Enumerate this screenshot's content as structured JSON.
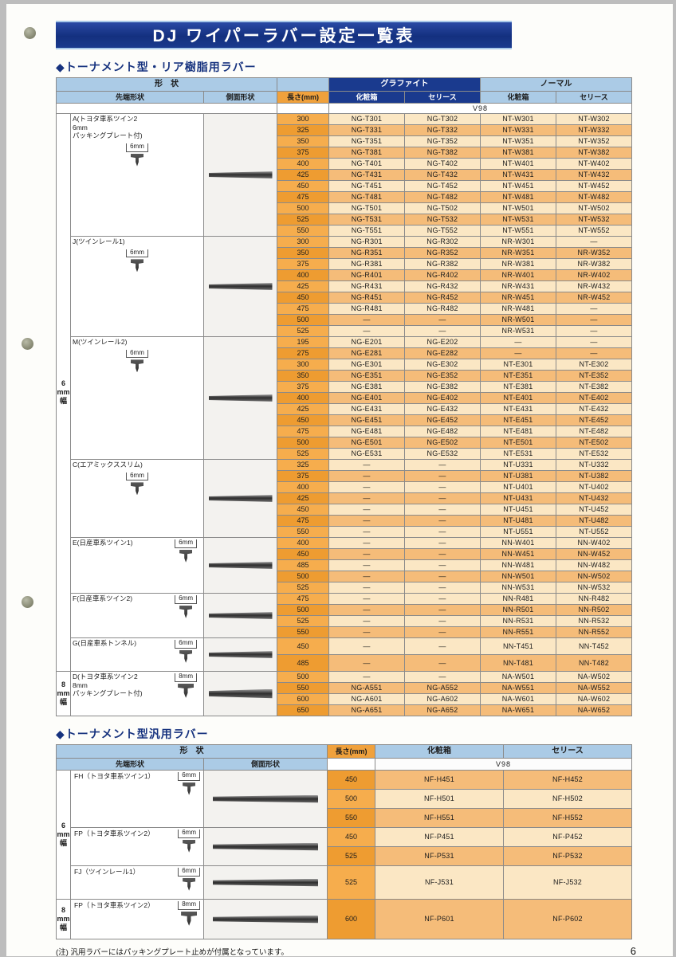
{
  "page": {
    "title": "DJ ワイパーラバー設定一覧表",
    "page_number": "6",
    "footnote": "(注) 汎用ラバーにはパッキングプレート止めが付属となっています。"
  },
  "colors": {
    "banner_bg": "#1A3A8E",
    "header_blue": "#ABCBE6",
    "header_navy": "#1A3A8E",
    "length_orange": "#F0A13C",
    "row_light": "#FBE7C4",
    "row_orange": "#F5BC79"
  },
  "table1": {
    "section_title": "◆トーナメント型・リア樹脂用ラバー",
    "headers": {
      "shape": "形　状",
      "tip": "先端形状",
      "side": "側面形状",
      "length": "長さ(mm)",
      "graphite": "グラファイト",
      "normal": "ノーマル",
      "box_graphite": "化粧箱",
      "series_graphite": "セリース",
      "box_normal": "化粧箱",
      "series_normal": "セリース",
      "model": "V98"
    },
    "width_labels": {
      "6mm": [
        "6",
        "mm",
        "幅"
      ],
      "8mm": [
        "8",
        "mm",
        "幅"
      ]
    },
    "groups": [
      {
        "id": "A",
        "label_lines": [
          "A(トヨタ車系ツイン2",
          "6mm",
          "パッキングプレート付)"
        ],
        "tip_size": "6mm",
        "width": "6mm",
        "rows": [
          {
            "len": "300",
            "cells": [
              "NG-T301",
              "NG-T302",
              "NT-W301",
              "NT-W302"
            ]
          },
          {
            "len": "325",
            "cells": [
              "NG-T331",
              "NG-T332",
              "NT-W331",
              "NT-W332"
            ]
          },
          {
            "len": "350",
            "cells": [
              "NG-T351",
              "NG-T352",
              "NT-W351",
              "NT-W352"
            ]
          },
          {
            "len": "375",
            "cells": [
              "NG-T381",
              "NG-T382",
              "NT-W381",
              "NT-W382"
            ]
          },
          {
            "len": "400",
            "cells": [
              "NG-T401",
              "NG-T402",
              "NT-W401",
              "NT-W402"
            ]
          },
          {
            "len": "425",
            "cells": [
              "NG-T431",
              "NG-T432",
              "NT-W431",
              "NT-W432"
            ]
          },
          {
            "len": "450",
            "cells": [
              "NG-T451",
              "NG-T452",
              "NT-W451",
              "NT-W452"
            ]
          },
          {
            "len": "475",
            "cells": [
              "NG-T481",
              "NG-T482",
              "NT-W481",
              "NT-W482"
            ]
          },
          {
            "len": "500",
            "cells": [
              "NG-T501",
              "NG-T502",
              "NT-W501",
              "NT-W502"
            ]
          },
          {
            "len": "525",
            "cells": [
              "NG-T531",
              "NG-T532",
              "NT-W531",
              "NT-W532"
            ]
          },
          {
            "len": "550",
            "cells": [
              "NG-T551",
              "NG-T552",
              "NT-W551",
              "NT-W552"
            ]
          }
        ]
      },
      {
        "id": "J",
        "label_lines": [
          "J(ツインレール1)"
        ],
        "tip_size": "6mm",
        "width": "6mm",
        "rows": [
          {
            "len": "300",
            "cells": [
              "NG-R301",
              "NG-R302",
              "NR-W301",
              "—"
            ]
          },
          {
            "len": "350",
            "cells": [
              "NG-R351",
              "NG-R352",
              "NR-W351",
              "NR-W352"
            ]
          },
          {
            "len": "375",
            "cells": [
              "NG-R381",
              "NG-R382",
              "NR-W381",
              "NR-W382"
            ]
          },
          {
            "len": "400",
            "cells": [
              "NG-R401",
              "NG-R402",
              "NR-W401",
              "NR-W402"
            ]
          },
          {
            "len": "425",
            "cells": [
              "NG-R431",
              "NG-R432",
              "NR-W431",
              "NR-W432"
            ]
          },
          {
            "len": "450",
            "cells": [
              "NG-R451",
              "NG-R452",
              "NR-W451",
              "NR-W452"
            ]
          },
          {
            "len": "475",
            "cells": [
              "NG-R481",
              "NG-R482",
              "NR-W481",
              "—"
            ]
          },
          {
            "len": "500",
            "cells": [
              "—",
              "—",
              "NR-W501",
              "—"
            ]
          },
          {
            "len": "525",
            "cells": [
              "—",
              "—",
              "NR-W531",
              "—"
            ]
          }
        ]
      },
      {
        "id": "M",
        "label_lines": [
          "M(ツインレール2)"
        ],
        "tip_size": "6mm",
        "width": "6mm",
        "rows": [
          {
            "len": "195",
            "cells": [
              "NG-E201",
              "NG-E202",
              "—",
              "—"
            ]
          },
          {
            "len": "275",
            "cells": [
              "NG-E281",
              "NG-E282",
              "—",
              "—"
            ]
          },
          {
            "len": "300",
            "cells": [
              "NG-E301",
              "NG-E302",
              "NT-E301",
              "NT-E302"
            ]
          },
          {
            "len": "350",
            "cells": [
              "NG-E351",
              "NG-E352",
              "NT-E351",
              "NT-E352"
            ]
          },
          {
            "len": "375",
            "cells": [
              "NG-E381",
              "NG-E382",
              "NT-E381",
              "NT-E382"
            ]
          },
          {
            "len": "400",
            "cells": [
              "NG-E401",
              "NG-E402",
              "NT-E401",
              "NT-E402"
            ]
          },
          {
            "len": "425",
            "cells": [
              "NG-E431",
              "NG-E432",
              "NT-E431",
              "NT-E432"
            ]
          },
          {
            "len": "450",
            "cells": [
              "NG-E451",
              "NG-E452",
              "NT-E451",
              "NT-E452"
            ]
          },
          {
            "len": "475",
            "cells": [
              "NG-E481",
              "NG-E482",
              "NT-E481",
              "NT-E482"
            ]
          },
          {
            "len": "500",
            "cells": [
              "NG-E501",
              "NG-E502",
              "NT-E501",
              "NT-E502"
            ]
          },
          {
            "len": "525",
            "cells": [
              "NG-E531",
              "NG-E532",
              "NT-E531",
              "NT-E532"
            ]
          }
        ]
      },
      {
        "id": "C",
        "label_lines": [
          "C(エアミックススリム)"
        ],
        "tip_size": "6mm",
        "width": "6mm",
        "rows": [
          {
            "len": "325",
            "cells": [
              "—",
              "—",
              "NT-U331",
              "NT-U332"
            ]
          },
          {
            "len": "375",
            "cells": [
              "—",
              "—",
              "NT-U381",
              "NT-U382"
            ]
          },
          {
            "len": "400",
            "cells": [
              "—",
              "—",
              "NT-U401",
              "NT-U402"
            ]
          },
          {
            "len": "425",
            "cells": [
              "—",
              "—",
              "NT-U431",
              "NT-U432"
            ]
          },
          {
            "len": "450",
            "cells": [
              "—",
              "—",
              "NT-U451",
              "NT-U452"
            ]
          },
          {
            "len": "475",
            "cells": [
              "—",
              "—",
              "NT-U481",
              "NT-U482"
            ]
          },
          {
            "len": "550",
            "cells": [
              "—",
              "—",
              "NT-U551",
              "NT-U552"
            ]
          }
        ]
      },
      {
        "id": "E",
        "label_lines": [
          "E(日産車系ツイン1)"
        ],
        "tip_size": "6mm",
        "width": "6mm",
        "draw_right": true,
        "rows": [
          {
            "len": "400",
            "cells": [
              "—",
              "—",
              "NN-W401",
              "NN-W402"
            ]
          },
          {
            "len": "450",
            "cells": [
              "—",
              "—",
              "NN-W451",
              "NN-W452"
            ]
          },
          {
            "len": "485",
            "cells": [
              "—",
              "—",
              "NN-W481",
              "NN-W482"
            ]
          },
          {
            "len": "500",
            "cells": [
              "—",
              "—",
              "NN-W501",
              "NN-W502"
            ]
          },
          {
            "len": "525",
            "cells": [
              "—",
              "—",
              "NN-W531",
              "NN-W532"
            ]
          }
        ]
      },
      {
        "id": "F",
        "label_lines": [
          "F(日産車系ツイン2)"
        ],
        "tip_size": "6mm",
        "width": "6mm",
        "draw_right": true,
        "rows": [
          {
            "len": "475",
            "cells": [
              "—",
              "—",
              "NN-R481",
              "NN-R482"
            ]
          },
          {
            "len": "500",
            "cells": [
              "—",
              "—",
              "NN-R501",
              "NN-R502"
            ]
          },
          {
            "len": "525",
            "cells": [
              "—",
              "—",
              "NN-R531",
              "NN-R532"
            ]
          },
          {
            "len": "550",
            "cells": [
              "—",
              "—",
              "NN-R551",
              "NN-R552"
            ]
          }
        ]
      },
      {
        "id": "G",
        "label_lines": [
          "G(日産車系トンネル)"
        ],
        "tip_size": "6mm",
        "width": "6mm",
        "tall": true,
        "draw_right": true,
        "rows": [
          {
            "len": "450",
            "cells": [
              "—",
              "—",
              "NN-T451",
              "NN-T452"
            ]
          },
          {
            "len": "485",
            "cells": [
              "—",
              "—",
              "NN-T481",
              "NN-T482"
            ]
          }
        ]
      },
      {
        "id": "D",
        "label_lines": [
          "D(トヨタ車系ツイン2",
          "8mm",
          "パッキングプレート付)"
        ],
        "tip_size": "8mm",
        "width": "8mm",
        "draw_right": true,
        "rows": [
          {
            "len": "500",
            "cells": [
              "—",
              "—",
              "NA-W501",
              "NA-W502"
            ]
          },
          {
            "len": "550",
            "cells": [
              "NG-A551",
              "NG-A552",
              "NA-W551",
              "NA-W552"
            ]
          },
          {
            "len": "600",
            "cells": [
              "NG-A601",
              "NG-A602",
              "NA-W601",
              "NA-W602"
            ]
          },
          {
            "len": "650",
            "cells": [
              "NG-A651",
              "NG-A652",
              "NA-W651",
              "NA-W652"
            ]
          }
        ]
      }
    ]
  },
  "table2": {
    "section_title": "◆トーナメント型汎用ラバー",
    "headers": {
      "shape": "形　状",
      "tip": "先端形状",
      "side": "側面形状",
      "length": "長さ(mm)",
      "box": "化粧箱",
      "series": "セリース",
      "model": "V98"
    },
    "width_labels": {
      "6mm": [
        "6",
        "mm",
        "幅"
      ],
      "8mm": [
        "8",
        "mm",
        "幅"
      ]
    },
    "groups": [
      {
        "id": "FH",
        "label": "FH（トヨタ車系ツイン1）",
        "tip_size": "6mm",
        "width": "6mm",
        "rows": [
          {
            "len": "450",
            "cells": [
              "NF-H451",
              "NF-H452"
            ]
          },
          {
            "len": "500",
            "cells": [
              "NF-H501",
              "NF-H502"
            ]
          },
          {
            "len": "550",
            "cells": [
              "NF-H551",
              "NF-H552"
            ]
          }
        ]
      },
      {
        "id": "FP",
        "label": "FP（トヨタ車系ツイン2）",
        "tip_size": "6mm",
        "width": "6mm",
        "rows": [
          {
            "len": "450",
            "cells": [
              "NF-P451",
              "NF-P452"
            ]
          },
          {
            "len": "525",
            "cells": [
              "NF-P531",
              "NF-P532"
            ]
          }
        ]
      },
      {
        "id": "FJ",
        "label": "FJ（ツインレール1）",
        "tip_size": "6mm",
        "width": "6mm",
        "tall": true,
        "rows": [
          {
            "len": "525",
            "cells": [
              "NF-J531",
              "NF-J532"
            ]
          }
        ]
      },
      {
        "id": "FP8",
        "label": "FP（トヨタ車系ツイン2）",
        "tip_size": "8mm",
        "width": "8mm",
        "xtall": true,
        "rows": [
          {
            "len": "600",
            "cells": [
              "NF-P601",
              "NF-P602"
            ]
          }
        ]
      }
    ]
  }
}
